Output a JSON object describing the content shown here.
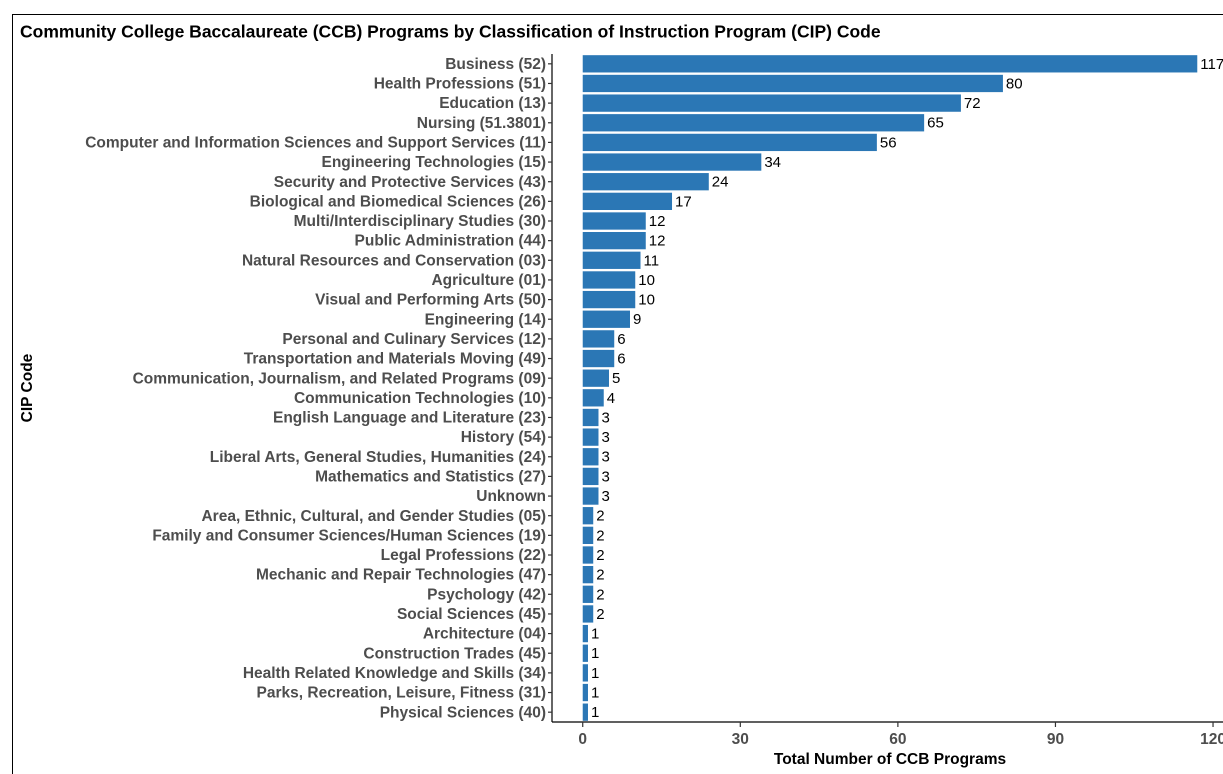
{
  "chart_data": {
    "type": "bar",
    "orientation": "horizontal",
    "title": "Community College Baccalaureate (CCB) Programs by Classification of Instruction Program (CIP) Code",
    "x_label": "Total Number of CCB Programs",
    "y_label": "CIP Code",
    "categories": [
      "Business (52)",
      "Health Professions (51)",
      "Education (13)",
      "Nursing (51.3801)",
      "Computer and Information Sciences and Support Services (11)",
      "Engineering Technologies (15)",
      "Security and Protective Services (43)",
      "Biological and Biomedical Sciences (26)",
      "Multi/Interdisciplinary Studies (30)",
      "Public Administration (44)",
      "Natural Resources and Conservation (03)",
      "Agriculture (01)",
      "Visual and Performing Arts (50)",
      "Engineering (14)",
      "Personal and Culinary Services (12)",
      "Transportation and Materials Moving (49)",
      "Communication, Journalism, and Related Programs (09)",
      "Communication Technologies (10)",
      "English Language and Literature (23)",
      "History (54)",
      "Liberal Arts, General Studies, Humanities (24)",
      "Mathematics and Statistics (27)",
      "Unknown",
      "Area, Ethnic, Cultural, and Gender Studies (05)",
      "Family and Consumer Sciences/Human Sciences (19)",
      "Legal Professions (22)",
      "Mechanic and Repair Technologies (47)",
      "Psychology (42)",
      "Social Sciences (45)",
      "Architecture (04)",
      "Construction Trades (45)",
      "Health Related Knowledge and Skills (34)",
      "Parks, Recreation, Leisure, Fitness (31)",
      "Physical Sciences (40)"
    ],
    "values": [
      117,
      80,
      72,
      65,
      56,
      34,
      24,
      17,
      12,
      12,
      11,
      10,
      10,
      9,
      6,
      6,
      5,
      4,
      3,
      3,
      3,
      3,
      3,
      2,
      2,
      2,
      2,
      2,
      2,
      1,
      1,
      1,
      1,
      1
    ],
    "color": "#2b77b5",
    "xlim": [
      -5.85,
      122.85
    ],
    "xticks": [
      0,
      30,
      60,
      90,
      120
    ],
    "grid": false
  }
}
